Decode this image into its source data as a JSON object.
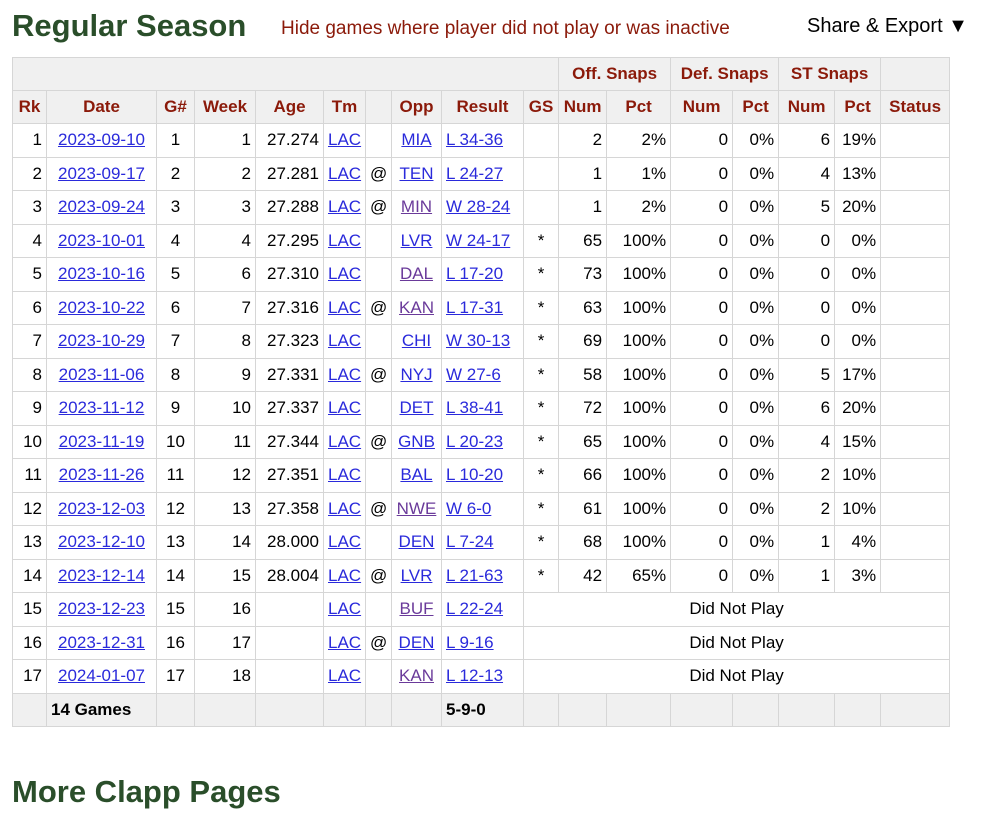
{
  "header": {
    "title": "Regular Season",
    "hide_link": "Hide games where player did not play or was inactive",
    "share_export": "Share & Export ▼"
  },
  "table": {
    "group_headers": [
      "Off. Snaps",
      "Def. Snaps",
      "ST Snaps"
    ],
    "columns": [
      "Rk",
      "Date",
      "G#",
      "Week",
      "Age",
      "Tm",
      "",
      "Opp",
      "Result",
      "GS",
      "Num",
      "Pct",
      "Num",
      "Pct",
      "Num",
      "Pct",
      "Status"
    ],
    "rows": [
      {
        "rk": "1",
        "date": "2023-09-10",
        "g": "1",
        "week": "1",
        "age": "27.274",
        "tm": "LAC",
        "at": "",
        "opp": "MIA",
        "result": "L 34-36",
        "gs": "",
        "off_num": "2",
        "off_pct": "2%",
        "def_num": "0",
        "def_pct": "0%",
        "st_num": "6",
        "st_pct": "19%",
        "status": "",
        "opp_visited": false
      },
      {
        "rk": "2",
        "date": "2023-09-17",
        "g": "2",
        "week": "2",
        "age": "27.281",
        "tm": "LAC",
        "at": "@",
        "opp": "TEN",
        "result": "L 24-27",
        "gs": "",
        "off_num": "1",
        "off_pct": "1%",
        "def_num": "0",
        "def_pct": "0%",
        "st_num": "4",
        "st_pct": "13%",
        "status": "",
        "opp_visited": false
      },
      {
        "rk": "3",
        "date": "2023-09-24",
        "g": "3",
        "week": "3",
        "age": "27.288",
        "tm": "LAC",
        "at": "@",
        "opp": "MIN",
        "result": "W 28-24",
        "gs": "",
        "off_num": "1",
        "off_pct": "2%",
        "def_num": "0",
        "def_pct": "0%",
        "st_num": "5",
        "st_pct": "20%",
        "status": "",
        "opp_visited": true
      },
      {
        "rk": "4",
        "date": "2023-10-01",
        "g": "4",
        "week": "4",
        "age": "27.295",
        "tm": "LAC",
        "at": "",
        "opp": "LVR",
        "result": "W 24-17",
        "gs": "*",
        "off_num": "65",
        "off_pct": "100%",
        "def_num": "0",
        "def_pct": "0%",
        "st_num": "0",
        "st_pct": "0%",
        "status": "",
        "opp_visited": false
      },
      {
        "rk": "5",
        "date": "2023-10-16",
        "g": "5",
        "week": "6",
        "age": "27.310",
        "tm": "LAC",
        "at": "",
        "opp": "DAL",
        "result": "L 17-20",
        "gs": "*",
        "off_num": "73",
        "off_pct": "100%",
        "def_num": "0",
        "def_pct": "0%",
        "st_num": "0",
        "st_pct": "0%",
        "status": "",
        "opp_visited": true
      },
      {
        "rk": "6",
        "date": "2023-10-22",
        "g": "6",
        "week": "7",
        "age": "27.316",
        "tm": "LAC",
        "at": "@",
        "opp": "KAN",
        "result": "L 17-31",
        "gs": "*",
        "off_num": "63",
        "off_pct": "100%",
        "def_num": "0",
        "def_pct": "0%",
        "st_num": "0",
        "st_pct": "0%",
        "status": "",
        "opp_visited": true
      },
      {
        "rk": "7",
        "date": "2023-10-29",
        "g": "7",
        "week": "8",
        "age": "27.323",
        "tm": "LAC",
        "at": "",
        "opp": "CHI",
        "result": "W 30-13",
        "gs": "*",
        "off_num": "69",
        "off_pct": "100%",
        "def_num": "0",
        "def_pct": "0%",
        "st_num": "0",
        "st_pct": "0%",
        "status": "",
        "opp_visited": false
      },
      {
        "rk": "8",
        "date": "2023-11-06",
        "g": "8",
        "week": "9",
        "age": "27.331",
        "tm": "LAC",
        "at": "@",
        "opp": "NYJ",
        "result": "W 27-6",
        "gs": "*",
        "off_num": "58",
        "off_pct": "100%",
        "def_num": "0",
        "def_pct": "0%",
        "st_num": "5",
        "st_pct": "17%",
        "status": "",
        "opp_visited": false
      },
      {
        "rk": "9",
        "date": "2023-11-12",
        "g": "9",
        "week": "10",
        "age": "27.337",
        "tm": "LAC",
        "at": "",
        "opp": "DET",
        "result": "L 38-41",
        "gs": "*",
        "off_num": "72",
        "off_pct": "100%",
        "def_num": "0",
        "def_pct": "0%",
        "st_num": "6",
        "st_pct": "20%",
        "status": "",
        "opp_visited": false
      },
      {
        "rk": "10",
        "date": "2023-11-19",
        "g": "10",
        "week": "11",
        "age": "27.344",
        "tm": "LAC",
        "at": "@",
        "opp": "GNB",
        "result": "L 20-23",
        "gs": "*",
        "off_num": "65",
        "off_pct": "100%",
        "def_num": "0",
        "def_pct": "0%",
        "st_num": "4",
        "st_pct": "15%",
        "status": "",
        "opp_visited": false
      },
      {
        "rk": "11",
        "date": "2023-11-26",
        "g": "11",
        "week": "12",
        "age": "27.351",
        "tm": "LAC",
        "at": "",
        "opp": "BAL",
        "result": "L 10-20",
        "gs": "*",
        "off_num": "66",
        "off_pct": "100%",
        "def_num": "0",
        "def_pct": "0%",
        "st_num": "2",
        "st_pct": "10%",
        "status": "",
        "opp_visited": false
      },
      {
        "rk": "12",
        "date": "2023-12-03",
        "g": "12",
        "week": "13",
        "age": "27.358",
        "tm": "LAC",
        "at": "@",
        "opp": "NWE",
        "result": "W 6-0",
        "gs": "*",
        "off_num": "61",
        "off_pct": "100%",
        "def_num": "0",
        "def_pct": "0%",
        "st_num": "2",
        "st_pct": "10%",
        "status": "",
        "opp_visited": true
      },
      {
        "rk": "13",
        "date": "2023-12-10",
        "g": "13",
        "week": "14",
        "age": "28.000",
        "tm": "LAC",
        "at": "",
        "opp": "DEN",
        "result": "L 7-24",
        "gs": "*",
        "off_num": "68",
        "off_pct": "100%",
        "def_num": "0",
        "def_pct": "0%",
        "st_num": "1",
        "st_pct": "4%",
        "status": "",
        "opp_visited": false
      },
      {
        "rk": "14",
        "date": "2023-12-14",
        "g": "14",
        "week": "15",
        "age": "28.004",
        "tm": "LAC",
        "at": "@",
        "opp": "LVR",
        "result": "L 21-63",
        "gs": "*",
        "off_num": "42",
        "off_pct": "65%",
        "def_num": "0",
        "def_pct": "0%",
        "st_num": "1",
        "st_pct": "3%",
        "status": "",
        "opp_visited": false
      },
      {
        "rk": "15",
        "date": "2023-12-23",
        "g": "15",
        "week": "16",
        "age": "",
        "tm": "LAC",
        "at": "",
        "opp": "BUF",
        "result": "L 22-24",
        "dnp": "Did Not Play",
        "opp_visited": true
      },
      {
        "rk": "16",
        "date": "2023-12-31",
        "g": "16",
        "week": "17",
        "age": "",
        "tm": "LAC",
        "at": "@",
        "opp": "DEN",
        "result": "L 9-16",
        "dnp": "Did Not Play",
        "opp_visited": false
      },
      {
        "rk": "17",
        "date": "2024-01-07",
        "g": "17",
        "week": "18",
        "age": "",
        "tm": "LAC",
        "at": "",
        "opp": "KAN",
        "result": "L 12-13",
        "dnp": "Did Not Play",
        "opp_visited": true
      }
    ],
    "footer": {
      "games": "14 Games",
      "record": "5-9-0"
    }
  },
  "more_section": {
    "title": "More Clapp Pages"
  },
  "colors": {
    "title_green": "#2a4e2a",
    "header_red": "#8b1a0a",
    "link_blue": "#2a2adb",
    "link_visited": "#6a3a9a",
    "header_bg": "#f0f0f0"
  }
}
